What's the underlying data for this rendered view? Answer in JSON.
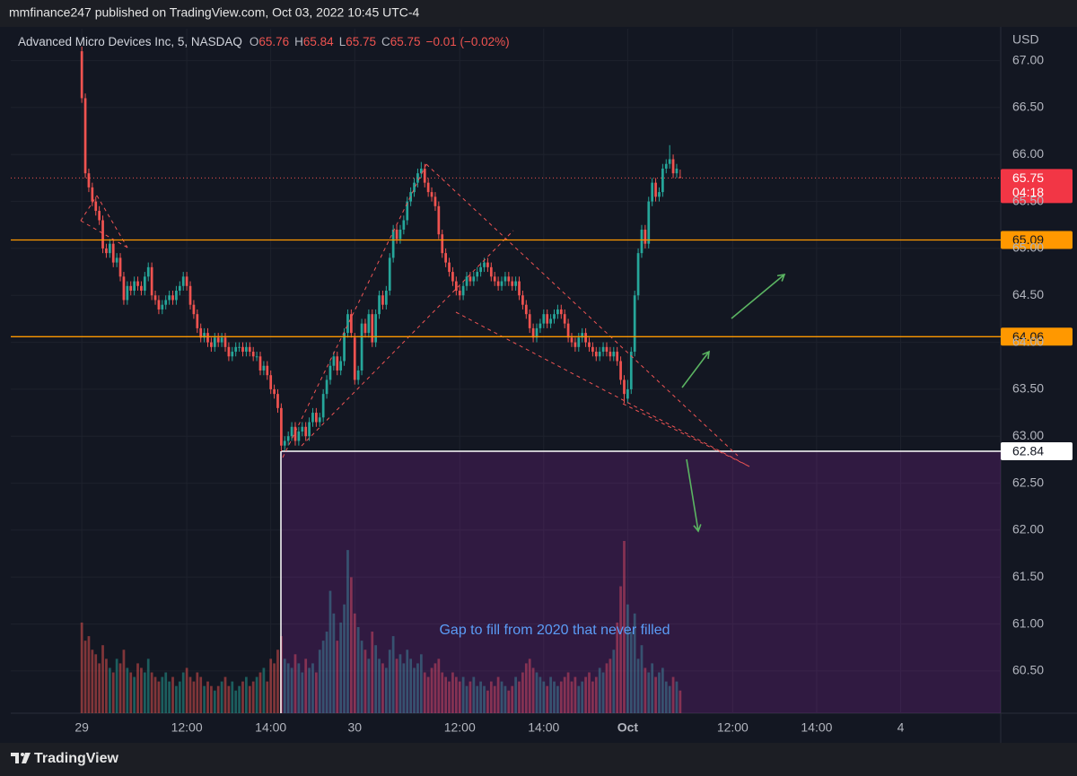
{
  "header": {
    "published": "mmfinance247 published on TradingView.com, Oct 03, 2022 10:45 UTC-4"
  },
  "footer": {
    "brand": "TradingView"
  },
  "chart_data": {
    "type": "candlestick",
    "title": "Advanced Micro Devices Inc, 5, NASDAQ",
    "ohlc_legend": [
      {
        "key": "O",
        "value": "65.76"
      },
      {
        "key": "H",
        "value": "65.84"
      },
      {
        "key": "L",
        "value": "65.75"
      },
      {
        "key": "C",
        "value": "65.75"
      }
    ],
    "change": "−0.01 (−0.02%)",
    "y_axis_label": "USD",
    "up_color": "#26a69a",
    "down_color": "#ef5350",
    "open": [
      67.1,
      66.6,
      65.8,
      65.65,
      65.5,
      65.4,
      65.3,
      65.0,
      64.95,
      65.05,
      64.85,
      64.9,
      64.7,
      64.45,
      64.6,
      64.55,
      64.65,
      64.6,
      64.55,
      64.7,
      64.8,
      64.5,
      64.45,
      64.35,
      64.4,
      64.45,
      64.5,
      64.45,
      64.55,
      64.6,
      64.7,
      64.6,
      64.4,
      64.3,
      64.15,
      64.05,
      64.1,
      64.0,
      63.95,
      64.05,
      64.0,
      64.05,
      63.95,
      63.85,
      63.9,
      63.95,
      63.95,
      63.9,
      63.95,
      63.9,
      63.85,
      63.85,
      63.7,
      63.75,
      63.65,
      63.5,
      63.45,
      63.3,
      62.9,
      62.95,
      63.0,
      63.1,
      62.95,
      63.05,
      63.1,
      63.0,
      63.15,
      63.25,
      63.15,
      63.2,
      63.45,
      63.6,
      63.75,
      63.85,
      63.7,
      63.8,
      64.1,
      64.3,
      64.05,
      63.6,
      63.7,
      64.2,
      64.1,
      64.3,
      64.0,
      64.3,
      64.5,
      64.4,
      64.55,
      64.9,
      65.2,
      65.1,
      65.2,
      65.3,
      65.5,
      65.6,
      65.7,
      65.8,
      65.85,
      65.7,
      65.6,
      65.55,
      65.45,
      65.15,
      64.95,
      64.85,
      64.75,
      64.65,
      64.55,
      64.5,
      64.6,
      64.7,
      64.65,
      64.7,
      64.75,
      64.8,
      64.85,
      64.8,
      64.7,
      64.65,
      64.6,
      64.65,
      64.7,
      64.65,
      64.6,
      64.65,
      64.5,
      64.4,
      64.3,
      64.15,
      64.05,
      64.15,
      64.2,
      64.3,
      64.2,
      64.25,
      64.3,
      64.35,
      64.3,
      64.2,
      64.05,
      64.0,
      63.95,
      64.05,
      64.1,
      64.0,
      63.95,
      63.9,
      63.85,
      63.9,
      63.95,
      63.9,
      63.85,
      63.9,
      63.8,
      63.6,
      63.4,
      63.5,
      63.9,
      64.5,
      64.95,
      65.2,
      65.05,
      65.5,
      65.7,
      65.55,
      65.6,
      65.85,
      65.9,
      65.95,
      65.8,
      65.76
    ],
    "high": [
      67.15,
      66.65,
      65.85,
      65.7,
      65.55,
      65.45,
      65.35,
      65.05,
      65.1,
      65.1,
      64.95,
      64.95,
      64.75,
      64.65,
      64.65,
      64.7,
      64.7,
      64.65,
      64.75,
      64.85,
      64.85,
      64.55,
      64.5,
      64.45,
      64.5,
      64.55,
      64.55,
      64.6,
      64.65,
      64.75,
      64.75,
      64.65,
      64.45,
      64.35,
      64.2,
      64.15,
      64.15,
      64.05,
      64.1,
      64.1,
      64.1,
      64.1,
      64.0,
      63.95,
      64.0,
      64.0,
      64.0,
      64.0,
      64.0,
      63.95,
      63.9,
      63.9,
      63.8,
      63.8,
      63.7,
      63.55,
      63.5,
      63.35,
      63.0,
      63.05,
      63.15,
      63.15,
      63.1,
      63.15,
      63.15,
      63.2,
      63.3,
      63.3,
      63.25,
      63.5,
      63.65,
      63.8,
      63.9,
      63.9,
      63.85,
      64.15,
      64.35,
      64.35,
      64.1,
      63.75,
      64.25,
      64.25,
      64.35,
      64.35,
      64.35,
      64.55,
      64.55,
      64.6,
      64.95,
      65.25,
      65.25,
      65.25,
      65.35,
      65.55,
      65.65,
      65.75,
      65.85,
      65.92,
      65.9,
      65.75,
      65.65,
      65.6,
      65.5,
      65.2,
      65.0,
      64.9,
      64.8,
      64.7,
      64.6,
      64.65,
      64.75,
      64.75,
      64.75,
      64.8,
      64.85,
      64.9,
      64.9,
      64.85,
      64.75,
      64.7,
      64.7,
      64.75,
      64.75,
      64.7,
      64.7,
      64.7,
      64.55,
      64.45,
      64.35,
      64.2,
      64.2,
      64.25,
      64.35,
      64.35,
      64.3,
      64.35,
      64.4,
      64.4,
      64.35,
      64.25,
      64.1,
      64.05,
      64.1,
      64.15,
      64.15,
      64.05,
      64.0,
      63.95,
      63.95,
      64.0,
      64.0,
      63.95,
      63.95,
      63.95,
      63.85,
      63.65,
      63.6,
      63.95,
      64.55,
      65.0,
      65.25,
      65.25,
      65.55,
      65.75,
      65.75,
      65.65,
      65.9,
      65.95,
      66.1,
      66.0,
      65.9,
      65.84
    ],
    "low": [
      66.55,
      65.75,
      65.6,
      65.45,
      65.35,
      65.25,
      64.95,
      64.9,
      64.9,
      64.8,
      64.8,
      64.65,
      64.4,
      64.4,
      64.5,
      64.5,
      64.55,
      64.5,
      64.5,
      64.65,
      64.45,
      64.4,
      64.3,
      64.3,
      64.35,
      64.4,
      64.4,
      64.4,
      64.5,
      64.55,
      64.55,
      64.35,
      64.25,
      64.1,
      64.0,
      64.0,
      63.95,
      63.9,
      63.9,
      63.95,
      63.95,
      63.9,
      63.8,
      63.8,
      63.85,
      63.9,
      63.85,
      63.85,
      63.85,
      63.8,
      63.8,
      63.65,
      63.65,
      63.6,
      63.45,
      63.4,
      63.25,
      62.84,
      62.85,
      62.9,
      62.95,
      62.9,
      62.9,
      63.0,
      62.95,
      62.95,
      63.1,
      63.1,
      63.1,
      63.15,
      63.4,
      63.55,
      63.7,
      63.65,
      63.65,
      63.75,
      64.05,
      64.05,
      63.55,
      63.55,
      63.65,
      64.05,
      64.05,
      63.95,
      63.95,
      64.25,
      64.35,
      64.35,
      64.5,
      64.85,
      65.05,
      65.05,
      65.15,
      65.25,
      65.45,
      65.55,
      65.65,
      65.75,
      65.65,
      65.55,
      65.5,
      65.4,
      65.1,
      64.9,
      64.8,
      64.7,
      64.6,
      64.5,
      64.45,
      64.45,
      64.55,
      64.6,
      64.6,
      64.65,
      64.7,
      64.75,
      64.75,
      64.65,
      64.6,
      64.55,
      64.55,
      64.6,
      64.6,
      64.55,
      64.55,
      64.45,
      64.35,
      64.25,
      64.1,
      64.0,
      64.0,
      64.1,
      64.15,
      64.15,
      64.15,
      64.2,
      64.25,
      64.25,
      64.15,
      64.0,
      63.95,
      63.9,
      63.9,
      64.0,
      63.95,
      63.9,
      63.85,
      63.8,
      63.8,
      63.85,
      63.85,
      63.8,
      63.8,
      63.75,
      63.55,
      63.35,
      63.35,
      63.45,
      63.85,
      64.45,
      64.9,
      65.0,
      65.0,
      65.45,
      65.5,
      65.5,
      65.55,
      65.8,
      65.85,
      65.75,
      65.75,
      65.75
    ],
    "close": [
      66.6,
      65.8,
      65.65,
      65.5,
      65.4,
      65.3,
      65.0,
      64.95,
      65.05,
      64.85,
      64.9,
      64.7,
      64.45,
      64.6,
      64.55,
      64.65,
      64.6,
      64.55,
      64.7,
      64.8,
      64.5,
      64.45,
      64.35,
      64.4,
      64.45,
      64.5,
      64.45,
      64.55,
      64.6,
      64.7,
      64.6,
      64.4,
      64.3,
      64.15,
      64.05,
      64.1,
      64.0,
      63.95,
      64.05,
      64.0,
      64.05,
      63.95,
      63.85,
      63.9,
      63.95,
      63.95,
      63.9,
      63.95,
      63.9,
      63.85,
      63.85,
      63.7,
      63.75,
      63.65,
      63.5,
      63.45,
      63.3,
      62.9,
      62.95,
      63.0,
      63.1,
      62.95,
      63.05,
      63.1,
      63.0,
      63.15,
      63.25,
      63.15,
      63.2,
      63.45,
      63.6,
      63.75,
      63.85,
      63.7,
      63.8,
      64.1,
      64.3,
      64.1,
      63.6,
      63.7,
      64.2,
      64.1,
      64.3,
      64.0,
      64.3,
      64.5,
      64.4,
      64.55,
      64.9,
      65.2,
      65.1,
      65.2,
      65.3,
      65.5,
      65.6,
      65.7,
      65.8,
      65.85,
      65.7,
      65.6,
      65.55,
      65.45,
      65.15,
      64.95,
      64.85,
      64.75,
      64.65,
      64.55,
      64.5,
      64.6,
      64.7,
      64.65,
      64.7,
      64.75,
      64.8,
      64.85,
      64.8,
      64.7,
      64.65,
      64.6,
      64.65,
      64.7,
      64.65,
      64.6,
      64.65,
      64.5,
      64.4,
      64.3,
      64.15,
      64.05,
      64.15,
      64.2,
      64.3,
      64.2,
      64.25,
      64.3,
      64.35,
      64.3,
      64.2,
      64.05,
      64.0,
      63.95,
      64.05,
      64.1,
      64.0,
      63.95,
      63.9,
      63.85,
      63.9,
      63.95,
      63.9,
      63.85,
      63.9,
      63.8,
      63.6,
      63.45,
      63.5,
      63.9,
      64.5,
      64.95,
      65.2,
      65.05,
      65.5,
      65.7,
      65.55,
      65.6,
      65.85,
      65.9,
      65.95,
      65.8,
      65.85,
      65.75
    ],
    "volume": [
      100,
      80,
      85,
      70,
      65,
      55,
      75,
      60,
      50,
      45,
      60,
      55,
      70,
      50,
      45,
      40,
      55,
      50,
      45,
      60,
      45,
      40,
      35,
      40,
      45,
      35,
      40,
      30,
      35,
      45,
      50,
      40,
      35,
      45,
      40,
      30,
      35,
      30,
      25,
      30,
      35,
      40,
      30,
      35,
      25,
      30,
      35,
      40,
      30,
      35,
      40,
      45,
      50,
      35,
      60,
      55,
      70,
      85,
      60,
      55,
      50,
      65,
      55,
      45,
      60,
      50,
      55,
      45,
      70,
      80,
      90,
      135,
      110,
      80,
      100,
      120,
      180,
      150,
      110,
      95,
      80,
      70,
      60,
      90,
      75,
      60,
      55,
      50,
      70,
      85,
      60,
      65,
      55,
      70,
      60,
      50,
      55,
      65,
      45,
      40,
      50,
      55,
      60,
      45,
      40,
      35,
      45,
      40,
      35,
      40,
      30,
      35,
      40,
      30,
      35,
      30,
      25,
      35,
      30,
      40,
      35,
      30,
      25,
      30,
      40,
      35,
      45,
      55,
      60,
      50,
      45,
      40,
      35,
      30,
      40,
      35,
      30,
      35,
      40,
      45,
      35,
      40,
      30,
      35,
      40,
      45,
      35,
      40,
      50,
      45,
      55,
      60,
      70,
      100,
      140,
      190,
      120,
      90,
      110,
      60,
      75,
      50,
      45,
      55,
      40,
      45,
      50,
      35,
      30,
      40,
      35,
      25
    ],
    "xlim": [
      -20.3,
      262.6
    ],
    "xticks": [
      {
        "value": 0,
        "label": "29"
      },
      {
        "value": 30,
        "label": "12:00"
      },
      {
        "value": 54,
        "label": "14:00"
      },
      {
        "value": 78,
        "label": "30"
      },
      {
        "value": 108,
        "label": "12:00"
      },
      {
        "value": 132,
        "label": "14:00"
      },
      {
        "value": 156,
        "label": "Oct"
      },
      {
        "value": 186,
        "label": "12:00"
      },
      {
        "value": 210,
        "label": "14:00"
      },
      {
        "value": 234,
        "label": "4"
      }
    ],
    "ylim": [
      60.05,
      67.34
    ],
    "yticks": [
      {
        "value": 60.5,
        "label": "60.50"
      },
      {
        "value": 61,
        "label": "61.00"
      },
      {
        "value": 61.5,
        "label": "61.50"
      },
      {
        "value": 62,
        "label": "62.00"
      },
      {
        "value": 62.5,
        "label": "62.50"
      },
      {
        "value": 63,
        "label": "63.00"
      },
      {
        "value": 63.5,
        "label": "63.50"
      },
      {
        "value": 64,
        "label": "64.00"
      },
      {
        "value": 64.5,
        "label": "64.50"
      },
      {
        "value": 65,
        "label": "65.00"
      },
      {
        "value": 65.5,
        "label": "65.50"
      },
      {
        "value": 66,
        "label": "66.00"
      },
      {
        "value": 66.5,
        "label": "66.50"
      },
      {
        "value": 67,
        "label": "67.00"
      }
    ],
    "grid": true,
    "price_lines": [
      {
        "value": 65.09,
        "color": "#ff9800"
      },
      {
        "value": 64.06,
        "color": "#ff9800"
      }
    ],
    "last_price": 65.75,
    "countdown": "04:18",
    "gap_zone": {
      "top": 62.84,
      "color": "#9c27b0",
      "label": "Gap to fill from 2020 that never filled"
    }
  }
}
